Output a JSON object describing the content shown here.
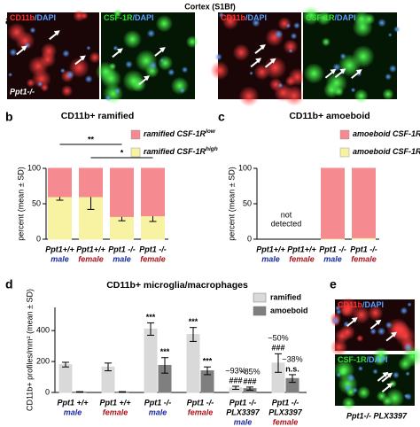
{
  "figure_title": "Cortex (S1Bf)",
  "panel_labels": [
    "a",
    "b",
    "c",
    "d",
    "e"
  ],
  "images_a": [
    {
      "marker": "CD11b",
      "counter": "/DAPI",
      "genotype": "Ppt1-/-"
    },
    {
      "marker": "CSF-1R",
      "counter": "/DAPI"
    },
    {
      "marker": "CD11b",
      "counter": "/DAPI"
    },
    {
      "marker": "CSF-1R",
      "counter": "/DAPI"
    }
  ],
  "images_e": [
    {
      "marker": "CD11b",
      "counter": "/DAPI"
    },
    {
      "marker": "CSF-1R",
      "counter": "/DAPI"
    }
  ],
  "image_e_caption": "Ppt1-/- PLX3397",
  "chart_data": [
    {
      "type": "stacked_bar",
      "title": "CD11b+ ramified",
      "ylabel": "percent (mean ± SD)",
      "categories": [
        "Ppt1+/+",
        "Ppt1+/+",
        "Ppt1 -/-",
        "Ppt1 -/-"
      ],
      "sexes": [
        "male",
        "female",
        "male",
        "female"
      ],
      "sex_colors": [
        "#1c2c9c",
        "#a8141c",
        "#1c2c9c",
        "#a8141c"
      ],
      "series": [
        {
          "name": "ramified CSF-1R",
          "superscript": "high",
          "color": "#f7f3a2",
          "values": [
            60,
            60,
            32,
            33
          ],
          "errors": [
            5,
            18,
            6,
            8
          ]
        },
        {
          "name": "ramified CSF-1R",
          "superscript": "low",
          "color": "#f58a90",
          "values": [
            40,
            40,
            68,
            67
          ]
        }
      ],
      "significance": [
        "**",
        "*"
      ],
      "ylim": [
        0,
        100
      ],
      "yticks": [
        0,
        50,
        100
      ]
    },
    {
      "type": "stacked_bar",
      "title": "CD11b+ amoeboid",
      "ylabel": "percent (mean ± SD)",
      "categories": [
        "Ppt1+/+",
        "Ppt1+/+",
        "Ppt1 -/-",
        "Ppt1 -/-"
      ],
      "sexes": [
        "male",
        "female",
        "male",
        "female"
      ],
      "sex_colors": [
        "#1c2c9c",
        "#a8141c",
        "#1c2c9c",
        "#a8141c"
      ],
      "series": [
        {
          "name": "amoeboid CSF-1R",
          "superscript": "high",
          "color": "#f7f3a2",
          "values": [
            0,
            0,
            1,
            2
          ]
        },
        {
          "name": "amoeboid CSF-1R",
          "superscript": "low",
          "color": "#f58a90",
          "values": [
            0,
            0,
            99,
            98
          ]
        }
      ],
      "annotation": [
        "not",
        "detected"
      ],
      "ylim": [
        0,
        100
      ],
      "yticks": [
        0,
        50,
        100
      ]
    },
    {
      "type": "grouped_bar",
      "title": "CD11b+ microglia/macrophages",
      "ylabel": "CD11b+ profiles/mm² (mean ± SD)",
      "categories": [
        "Ppt1 +/+",
        "Ppt1 +/+",
        "Ppt1 -/-",
        "Ppt1 -/-",
        "Ppt1 -/-",
        "Ppt1 -/-"
      ],
      "treatments": [
        null,
        null,
        null,
        null,
        "PLX3397",
        "PLX3397"
      ],
      "sexes": [
        "male",
        "female",
        "male",
        "female",
        "male",
        "female"
      ],
      "sex_colors": [
        "#1c2c9c",
        "#a8141c",
        "#1c2c9c",
        "#a8141c",
        "#1c2c9c",
        "#a8141c"
      ],
      "series": [
        {
          "name": "ramified",
          "color": "#d9d9d9",
          "values": [
            180,
            165,
            410,
            375,
            30,
            190
          ],
          "errors": [
            15,
            25,
            40,
            45,
            10,
            60
          ],
          "change": [
            null,
            null,
            null,
            null,
            "~93%",
            "~50%"
          ],
          "significance": [
            null,
            null,
            "***",
            "***",
            "###",
            "###"
          ]
        },
        {
          "name": "amoeboid",
          "color": "#7f7f7f",
          "values": [
            3,
            3,
            175,
            140,
            25,
            90
          ],
          "errors": [
            2,
            2,
            50,
            25,
            10,
            25
          ],
          "change": [
            null,
            null,
            null,
            null,
            "~85%",
            "~38%"
          ],
          "significance": [
            null,
            null,
            "***",
            "***",
            "###",
            "n.s."
          ]
        }
      ],
      "ylim": [
        0,
        550
      ],
      "yticks": [
        0,
        200,
        400
      ]
    }
  ]
}
